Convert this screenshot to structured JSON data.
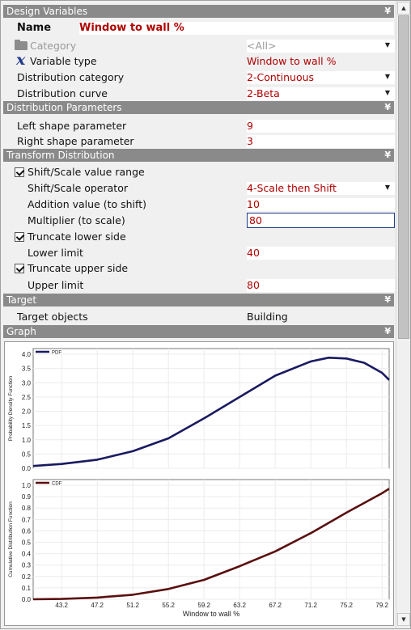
{
  "design_variables": {
    "header": "Design Variables",
    "name_label": "Name",
    "name_value": "Window to wall %",
    "category_label": "Category",
    "category_value": "<All>",
    "variable_type_label": "Variable type",
    "variable_type_value": "Window to wall %",
    "distribution_category_label": "Distribution category",
    "distribution_category_value": "2-Continuous",
    "distribution_curve_label": "Distribution curve",
    "distribution_curve_value": "2-Beta"
  },
  "distribution_parameters": {
    "header": "Distribution Parameters",
    "left_shape_label": "Left shape parameter",
    "left_shape_value": "9",
    "right_shape_label": "Right shape parameter",
    "right_shape_value": "3"
  },
  "transform_distribution": {
    "header": "Transform Distribution",
    "shift_scale_label": "Shift/Scale value range",
    "shift_scale_checked": true,
    "operator_label": "Shift/Scale operator",
    "operator_value": "4-Scale then Shift",
    "addition_label": "Addition value (to shift)",
    "addition_value": "10",
    "multiplier_label": "Multiplier (to scale)",
    "multiplier_value": "80",
    "truncate_lower_label": "Truncate lower side",
    "truncate_lower_checked": true,
    "lower_limit_label": "Lower limit",
    "lower_limit_value": "40",
    "truncate_upper_label": "Truncate upper side",
    "truncate_upper_checked": true,
    "upper_limit_label": "Upper limit",
    "upper_limit_value": "80"
  },
  "target": {
    "header": "Target",
    "objects_label": "Target objects",
    "objects_value": "Building"
  },
  "graph": {
    "header": "Graph"
  },
  "icons": {
    "section_toggle": "double-chevron-icon",
    "category": "folder-icon",
    "variable_type": "variable-x-icon",
    "dropdown": "dropdown-arrow-icon"
  },
  "colors": {
    "value_text": "#b00000",
    "section_header": "#8a8a8a",
    "pdf_line": "#1a1a60",
    "cdf_line": "#5a0f0f"
  },
  "chart_data": [
    {
      "type": "line",
      "series": [
        {
          "name": "PDF",
          "x": [
            40,
            43.2,
            47.2,
            51.2,
            55.2,
            59.2,
            63.2,
            67.2,
            71.2,
            73.2,
            75.2,
            77.2,
            79.2,
            80
          ],
          "y": [
            0.08,
            0.15,
            0.3,
            0.6,
            1.05,
            1.75,
            2.5,
            3.25,
            3.75,
            3.88,
            3.85,
            3.7,
            3.35,
            3.1
          ]
        }
      ],
      "title": "",
      "ylabel": "Probability Density Function",
      "xlim": [
        40,
        80
      ],
      "ylim": [
        0,
        4.2
      ],
      "yticks": [
        "0.0",
        "0.5",
        "1.0",
        "1.5",
        "2.0",
        "2.5",
        "3.0",
        "3.5",
        "4.0"
      ],
      "grid": true,
      "legend": "top-left"
    },
    {
      "type": "line",
      "series": [
        {
          "name": "CDF",
          "x": [
            40,
            43.2,
            47.2,
            51.2,
            55.2,
            59.2,
            63.2,
            67.2,
            71.2,
            75.2,
            79.2,
            80
          ],
          "y": [
            0.0,
            0.003,
            0.015,
            0.04,
            0.09,
            0.17,
            0.29,
            0.42,
            0.58,
            0.76,
            0.93,
            0.97
          ]
        }
      ],
      "title": "",
      "xlabel": "Window to wall %",
      "ylabel": "Cumulative Distribution Function",
      "xlim": [
        40,
        80
      ],
      "ylim": [
        0,
        1.05
      ],
      "xticks": [
        "43.2",
        "47.2",
        "51.2",
        "55.2",
        "59.2",
        "63.2",
        "67.2",
        "71.2",
        "75.2",
        "79.2"
      ],
      "yticks": [
        "0.0",
        "0.1",
        "0.2",
        "0.3",
        "0.4",
        "0.5",
        "0.6",
        "0.7",
        "0.8",
        "0.9",
        "1.0"
      ],
      "grid": true,
      "legend": "top-left"
    }
  ]
}
